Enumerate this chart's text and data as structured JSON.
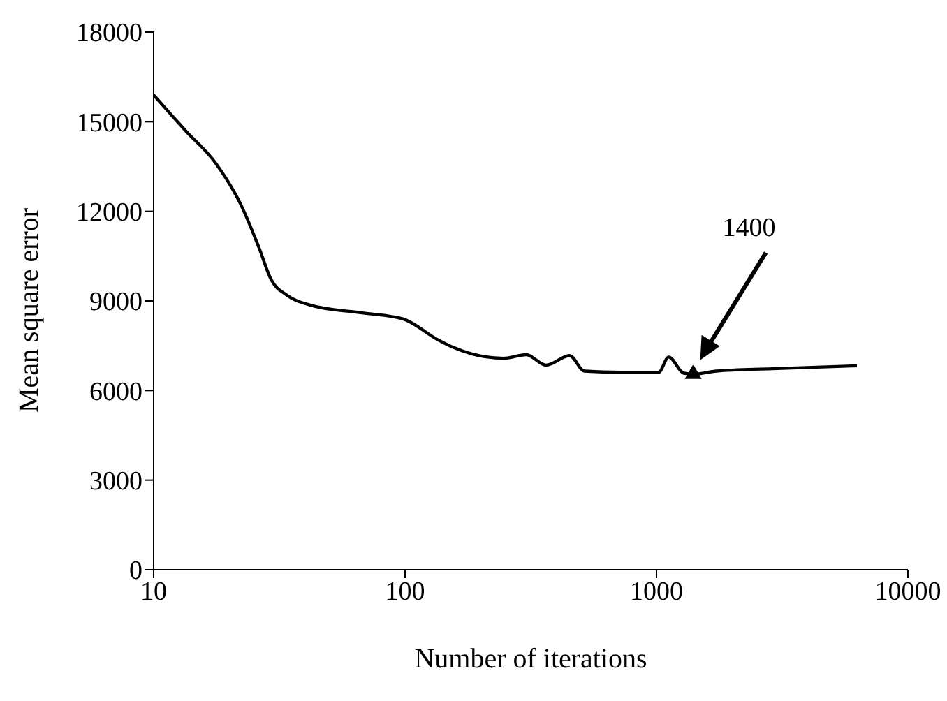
{
  "chart_data": {
    "type": "line",
    "xlabel": "Number of iterations",
    "ylabel": "Mean square error",
    "log": "x",
    "xlim": [
      10,
      10000
    ],
    "xticks": [
      10,
      100,
      1000,
      10000
    ],
    "ylim": [
      0,
      18000
    ],
    "yticks": [
      0,
      3000,
      6000,
      9000,
      12000,
      15000,
      18000
    ],
    "grid": false,
    "legend": false,
    "series": [
      {
        "color": "#000000",
        "marker": "none",
        "line_style": "solid",
        "x": [
          10,
          13.4,
          17.7,
          22.3,
          26.2,
          29.4,
          33.8,
          42.5,
          67.6,
          98,
          135,
          155,
          246,
          303,
          364,
          451,
          517,
          720,
          1020,
          1118,
          1284,
          1400,
          1730,
          2880,
          6270
        ],
        "values": [
          15900,
          14700,
          13600,
          12200,
          10800,
          9700,
          9200,
          8850,
          8600,
          8400,
          7700,
          7450,
          7080,
          7200,
          6850,
          7170,
          6650,
          6610,
          6610,
          7120,
          6580,
          6550,
          6650,
          6730,
          6830
        ]
      },
      {
        "type": "scatter",
        "color": "#000000",
        "marker": "triangle",
        "x": [
          1400
        ],
        "values": [
          6550
        ]
      }
    ],
    "annotations": [
      "1400"
    ]
  }
}
